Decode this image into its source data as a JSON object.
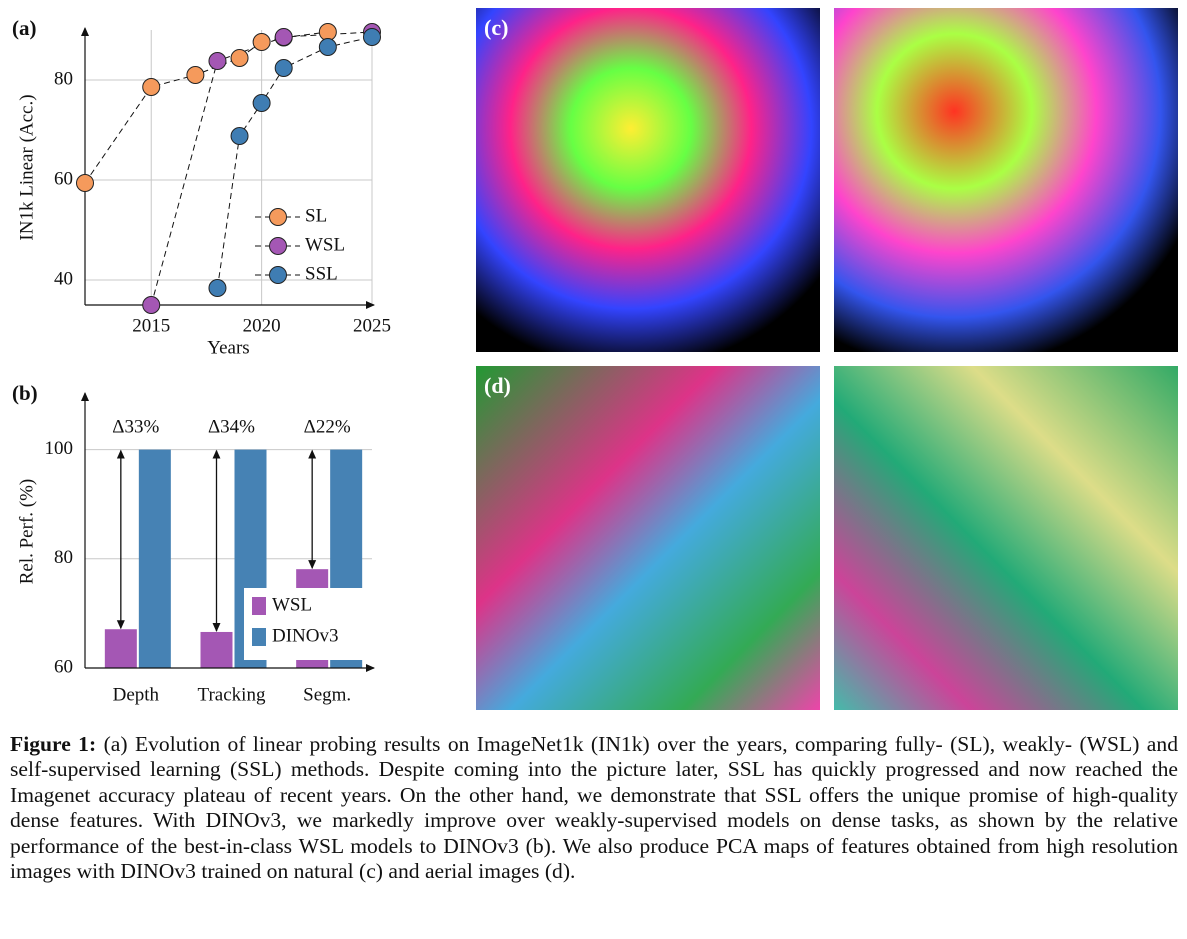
{
  "chart_data": [
    {
      "type": "line",
      "panel_label": "(a)",
      "xlabel": "Years",
      "ylabel": "IN1k Linear (Acc.)",
      "xlim": [
        2012,
        2025
      ],
      "xticks": [
        2015,
        2020,
        2025
      ],
      "ylim": [
        35,
        90
      ],
      "yticks": [
        40,
        60,
        80
      ],
      "grid": true,
      "legend": "lower right",
      "series": [
        {
          "name": "SL",
          "color": "#f59a5c",
          "x": [
            2012,
            2015,
            2017,
            2019,
            2020,
            2021,
            2023
          ],
          "values": [
            59.4,
            78.6,
            81,
            84.4,
            87.6,
            88.5,
            89.6
          ]
        },
        {
          "name": "WSL",
          "color": "#a457b4",
          "x": [
            2015,
            2018,
            2021,
            2025
          ],
          "values": [
            35,
            83.8,
            88.6,
            89.6
          ]
        },
        {
          "name": "SSL",
          "color": "#3f7db3",
          "x": [
            2018,
            2019,
            2020,
            2021,
            2023,
            2025
          ],
          "values": [
            38.4,
            68.8,
            75.4,
            82.4,
            86.6,
            88.6
          ]
        }
      ]
    },
    {
      "type": "bar",
      "panel_label": "(b)",
      "ylabel": "Rel. Perf. (%)",
      "categories": [
        "Depth",
        "Tracking",
        "Segm."
      ],
      "ylim": [
        60,
        110
      ],
      "yticks": [
        60,
        80,
        100
      ],
      "grid": true,
      "legend": "lower right",
      "annotations": [
        "Δ33%",
        "Δ34%",
        "Δ22%"
      ],
      "series": [
        {
          "name": "WSL",
          "color": "#a457b4",
          "values": [
            67.1,
            66.6,
            78.1
          ]
        },
        {
          "name": "DINOv3",
          "color": "#4682b4",
          "values": [
            100,
            100,
            100
          ]
        }
      ]
    }
  ],
  "panels": {
    "c_label": "(c)",
    "d_label": "(d)"
  },
  "caption": {
    "label": "Figure 1:",
    "text": "(a) Evolution of linear probing results on ImageNet1k (IN1k) over the years, comparing fully- (SL), weakly- (WSL) and self-supervised learning (SSL) methods. Despite coming into the picture later, SSL has quickly progressed and now reached the Imagenet accuracy plateau of recent years. On the other hand, we demonstrate that SSL offers the unique promise of high-quality dense features. With DINOv3, we markedly improve over weakly-supervised models on dense tasks, as shown by the relative performance of the best-in-class WSL models to DINOv3 (b). We also produce PCA maps of features obtained from high resolution images with DINOv3 trained on natural (c) and aerial images (d)."
  }
}
